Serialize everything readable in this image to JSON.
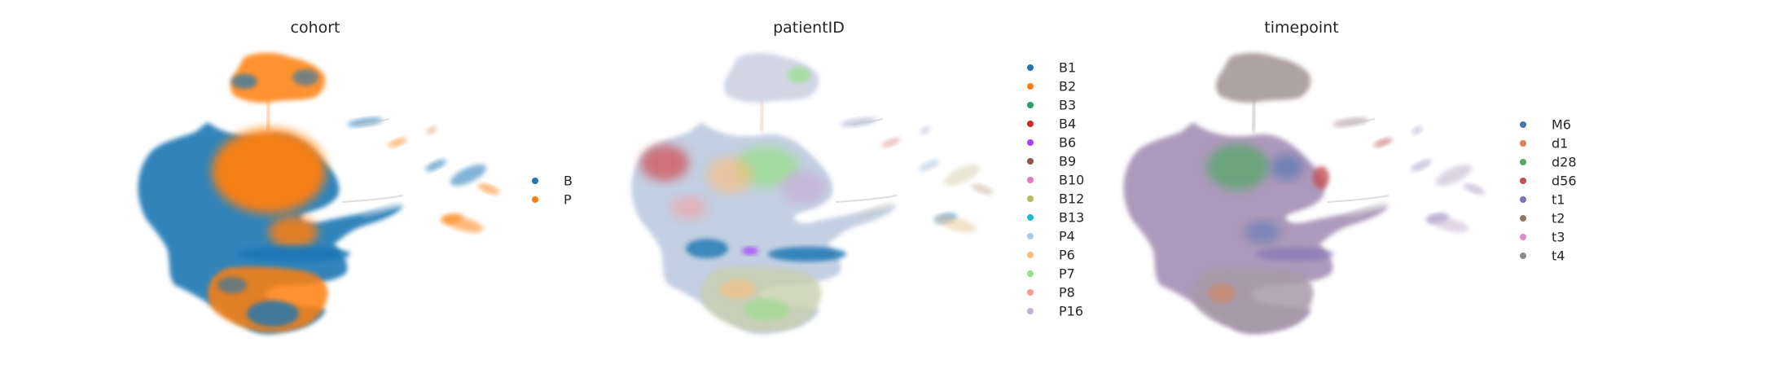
{
  "chart_data": [
    {
      "type": "scatter",
      "title": "cohort",
      "xlabel": "",
      "ylabel": "",
      "grid": false,
      "legend_position": "right",
      "series": [
        {
          "name": "B",
          "color": "#1f77b4"
        },
        {
          "name": "P",
          "color": "#ff7f0e"
        }
      ]
    },
    {
      "type": "scatter",
      "title": "patientID",
      "xlabel": "",
      "ylabel": "",
      "grid": false,
      "legend_position": "right",
      "series": [
        {
          "name": "B1",
          "color": "#1f77b4"
        },
        {
          "name": "B2",
          "color": "#ff7f0e"
        },
        {
          "name": "B3",
          "color": "#279e68"
        },
        {
          "name": "B4",
          "color": "#d62728"
        },
        {
          "name": "B6",
          "color": "#aa40fc"
        },
        {
          "name": "B9",
          "color": "#8c564b"
        },
        {
          "name": "B10",
          "color": "#e377c2"
        },
        {
          "name": "B12",
          "color": "#b5bd61"
        },
        {
          "name": "B13",
          "color": "#17becf"
        },
        {
          "name": "P4",
          "color": "#aec7e8"
        },
        {
          "name": "P6",
          "color": "#ffbb78"
        },
        {
          "name": "P7",
          "color": "#98df8a"
        },
        {
          "name": "P8",
          "color": "#ff9896"
        },
        {
          "name": "P16",
          "color": "#c5b0d5"
        }
      ]
    },
    {
      "type": "scatter",
      "title": "timepoint",
      "xlabel": "",
      "ylabel": "",
      "grid": false,
      "legend_position": "right",
      "series": [
        {
          "name": "M6",
          "color": "#4c72b0"
        },
        {
          "name": "d1",
          "color": "#dd8452"
        },
        {
          "name": "d28",
          "color": "#55a868"
        },
        {
          "name": "d56",
          "color": "#c44e52"
        },
        {
          "name": "t1",
          "color": "#8172b3"
        },
        {
          "name": "t2",
          "color": "#937860"
        },
        {
          "name": "t3",
          "color": "#da8bc3"
        },
        {
          "name": "t4",
          "color": "#8c8c8c"
        }
      ]
    }
  ]
}
